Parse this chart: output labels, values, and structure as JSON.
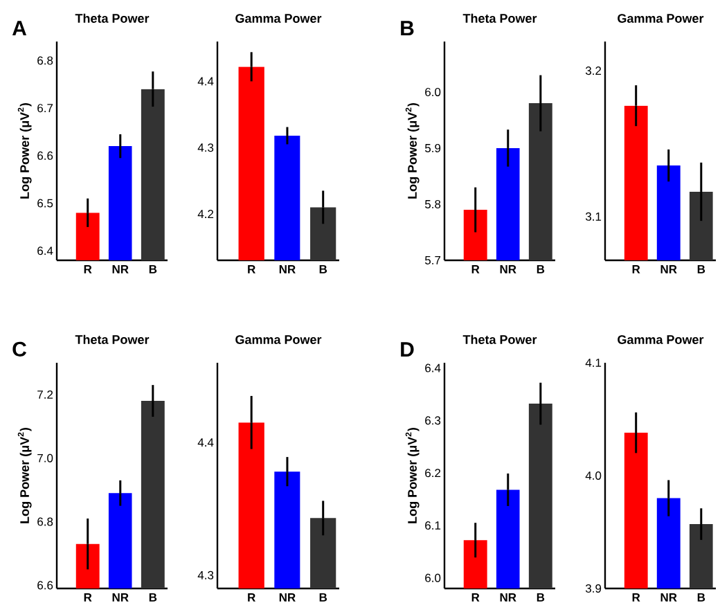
{
  "chart_data": [
    {
      "type": "bar",
      "title": "Theta Power",
      "ylabel": "Log Power (μV$^{2}$)",
      "annotations": [
        "A"
      ],
      "categories": [
        "R",
        "NR",
        "B"
      ],
      "values": [
        6.48,
        6.62,
        6.74
      ],
      "errors": [
        0.03,
        0.025,
        0.037
      ],
      "colors": [
        "#ff0000",
        "#0000ff",
        "#333333"
      ],
      "ylim": [
        6.38,
        6.84
      ],
      "yticks": [
        6.4,
        6.5,
        6.6,
        6.7,
        6.8
      ]
    },
    {
      "type": "bar",
      "title": "Gamma Power",
      "categories": [
        "R",
        "NR",
        "B"
      ],
      "values": [
        4.422,
        4.318,
        4.21
      ],
      "errors": [
        0.022,
        0.013,
        0.025
      ],
      "colors": [
        "#ff0000",
        "#0000ff",
        "#333333"
      ],
      "ylim": [
        4.13,
        4.46
      ],
      "yticks": [
        4.2,
        4.3,
        4.4
      ]
    },
    {
      "type": "bar",
      "title": "Theta Power",
      "ylabel": "Log Power (μV$^{2}$)",
      "annotations": [
        "B"
      ],
      "categories": [
        "R",
        "NR",
        "B"
      ],
      "values": [
        5.79,
        5.9,
        5.98
      ],
      "errors": [
        0.04,
        0.033,
        0.05
      ],
      "colors": [
        "#ff0000",
        "#0000ff",
        "#333333"
      ],
      "ylim": [
        5.7,
        6.09
      ],
      "yticks": [
        5.7,
        5.8,
        5.9,
        {
          "value": 6.0,
          "label": "6.0"
        }
      ]
    },
    {
      "type": "bar",
      "title": "Gamma Power",
      "categories": [
        "R",
        "NR",
        "B"
      ],
      "values": [
        3.176,
        3.135,
        3.117
      ],
      "errors": [
        0.014,
        0.011,
        0.02
      ],
      "colors": [
        "#ff0000",
        "#0000ff",
        "#333333"
      ],
      "ylim": [
        3.07,
        3.22
      ],
      "yticks": [
        3.1,
        3.2
      ]
    },
    {
      "type": "bar",
      "title": "Theta Power",
      "ylabel": "Log Power (μV$^{2}$)",
      "annotations": [
        "C"
      ],
      "categories": [
        "R",
        "NR",
        "B"
      ],
      "values": [
        6.73,
        6.89,
        7.18
      ],
      "errors": [
        0.08,
        0.04,
        0.05
      ],
      "colors": [
        "#ff0000",
        "#0000ff",
        "#333333"
      ],
      "ylim": [
        6.59,
        7.3
      ],
      "yticks": [
        6.6,
        6.8,
        {
          "value": 7.0,
          "label": "7.0"
        },
        7.2
      ]
    },
    {
      "type": "bar",
      "title": "Gamma Power",
      "categories": [
        "R",
        "NR",
        "B"
      ],
      "values": [
        4.415,
        4.378,
        4.343
      ],
      "errors": [
        0.02,
        0.011,
        0.013
      ],
      "colors": [
        "#ff0000",
        "#0000ff",
        "#333333"
      ],
      "ylim": [
        4.29,
        4.46
      ],
      "yticks": [
        4.3,
        4.4
      ]
    },
    {
      "type": "bar",
      "title": "Theta Power",
      "ylabel": "Log Power (μV$^{2}$)",
      "annotations": [
        "D"
      ],
      "categories": [
        "R",
        "NR",
        "B"
      ],
      "values": [
        6.072,
        6.168,
        6.332
      ],
      "errors": [
        0.033,
        0.031,
        0.04
      ],
      "colors": [
        "#ff0000",
        "#0000ff",
        "#333333"
      ],
      "ylim": [
        5.98,
        6.41
      ],
      "yticks": [
        {
          "value": 6.0,
          "label": "6.0"
        },
        6.1,
        6.2,
        6.3,
        6.4
      ]
    },
    {
      "type": "bar",
      "title": "Gamma Power",
      "categories": [
        "R",
        "NR",
        "B"
      ],
      "values": [
        4.038,
        3.98,
        3.957
      ],
      "errors": [
        0.018,
        0.016,
        0.014
      ],
      "colors": [
        "#ff0000",
        "#0000ff",
        "#333333"
      ],
      "ylim": [
        3.9,
        4.1
      ],
      "yticks": [
        3.9,
        {
          "value": 4.0,
          "label": "4.0"
        },
        4.1
      ]
    }
  ]
}
